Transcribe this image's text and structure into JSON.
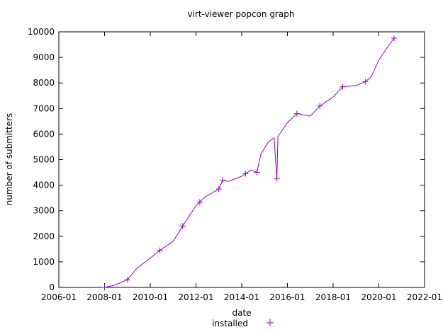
{
  "chart_data": {
    "type": "line",
    "title": "virt-viewer popcon graph",
    "xlabel": "date",
    "ylabel": "number of submitters",
    "x_ticks": [
      "2006-01",
      "2008-01",
      "2010-01",
      "2012-01",
      "2014-01",
      "2016-01",
      "2018-01",
      "2020-01",
      "2022-01"
    ],
    "y_ticks": [
      0,
      1000,
      2000,
      3000,
      4000,
      5000,
      6000,
      7000,
      8000,
      9000,
      10000
    ],
    "xlim": [
      "2006-01",
      "2022-01"
    ],
    "ylim": [
      0,
      10000
    ],
    "grid": false,
    "legend_position": "bottom-center",
    "series": [
      {
        "name": "installed",
        "color": "#9400d3",
        "marker": "plus",
        "points": [
          [
            "2008-01-01",
            0
          ],
          [
            "2008-06-01",
            80
          ],
          [
            "2009-01-01",
            300
          ],
          [
            "2009-06-01",
            750
          ],
          [
            "2010-01-01",
            1150
          ],
          [
            "2010-06-01",
            1450
          ],
          [
            "2011-01-01",
            1800
          ],
          [
            "2011-06-01",
            2400
          ],
          [
            "2012-01-01",
            3200
          ],
          [
            "2012-06-01",
            3550
          ],
          [
            "2013-01-01",
            3850
          ],
          [
            "2013-03-01",
            4200
          ],
          [
            "2013-06-01",
            4150
          ],
          [
            "2014-01-01",
            4350
          ],
          [
            "2014-06-01",
            4600
          ],
          [
            "2014-09-01",
            4500
          ],
          [
            "2014-11-01",
            5200
          ],
          [
            "2015-03-01",
            5700
          ],
          [
            "2015-06-01",
            5850
          ],
          [
            "2015-07-15",
            4250
          ],
          [
            "2015-08-01",
            5900
          ],
          [
            "2016-01-01",
            6450
          ],
          [
            "2016-06-01",
            6800
          ],
          [
            "2017-01-01",
            6700
          ],
          [
            "2017-06-01",
            7100
          ],
          [
            "2018-01-01",
            7450
          ],
          [
            "2018-06-01",
            7850
          ],
          [
            "2019-01-01",
            7900
          ],
          [
            "2019-06-01",
            8050
          ],
          [
            "2019-09-01",
            8250
          ],
          [
            "2020-01-01",
            8900
          ],
          [
            "2020-06-01",
            9450
          ],
          [
            "2020-09-01",
            9750
          ]
        ],
        "markers": [
          "2008-01-01",
          "2009-01-01",
          "2010-06-01",
          "2011-06-01",
          "2012-03-01",
          "2013-01-01",
          "2013-03-01",
          "2014-03-01",
          "2014-09-01",
          "2015-07-15",
          "2016-06-01",
          "2017-06-01",
          "2018-06-01",
          "2019-06-01",
          "2020-09-01"
        ]
      }
    ]
  }
}
